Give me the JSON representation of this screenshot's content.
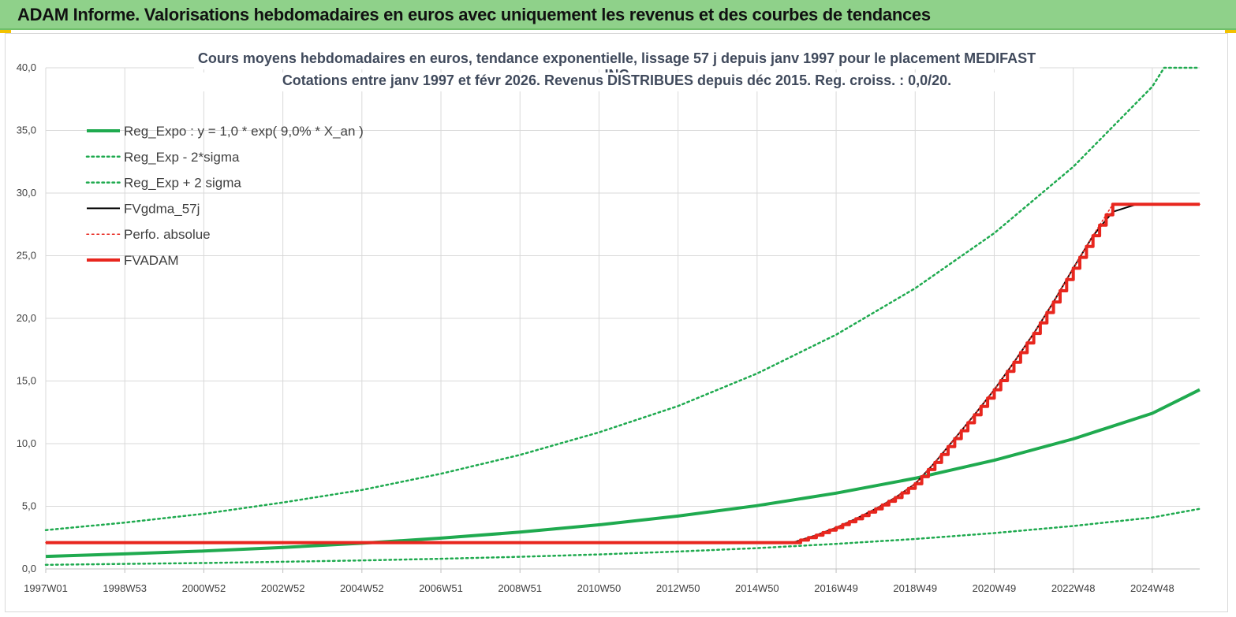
{
  "header": {
    "title": "ADAM Informe. Valorisations hebdomadaires en euros avec uniquement les revenus et des courbes de tendances"
  },
  "chart_data": {
    "type": "line",
    "title": [
      "Cours moyens hebdomadaires en euros, tendance exponentielle, lissage 57 j depuis janv 1997 pour le placement MEDIFAST INC",
      "Cotations entre janv 1997 et févr 2026. Revenus DISTRIBUES depuis déc 2015. Reg. croiss. : 0,0/20."
    ],
    "xlabel": "",
    "ylabel": "",
    "xlim": [
      1997.0,
      2026.2
    ],
    "ylim": [
      0,
      40
    ],
    "yticks": [
      "0,0",
      "5,0",
      "10,0",
      "15,0",
      "20,0",
      "25,0",
      "30,0",
      "35,0",
      "40,0"
    ],
    "xticks": [
      {
        "x": 1997.0,
        "label": "1997W01"
      },
      {
        "x": 1999.0,
        "label": "1998W53"
      },
      {
        "x": 2001.0,
        "label": "2000W52"
      },
      {
        "x": 2003.0,
        "label": "2002W52"
      },
      {
        "x": 2005.0,
        "label": "2004W52"
      },
      {
        "x": 2007.0,
        "label": "2006W51"
      },
      {
        "x": 2009.0,
        "label": "2008W51"
      },
      {
        "x": 2011.0,
        "label": "2010W50"
      },
      {
        "x": 2013.0,
        "label": "2012W50"
      },
      {
        "x": 2015.0,
        "label": "2014W50"
      },
      {
        "x": 2017.0,
        "label": "2016W49"
      },
      {
        "x": 2019.0,
        "label": "2018W49"
      },
      {
        "x": 2021.0,
        "label": "2020W49"
      },
      {
        "x": 2023.0,
        "label": "2022W48"
      },
      {
        "x": 2025.0,
        "label": "2024W48"
      }
    ],
    "grid": true,
    "legend_position": "top-left",
    "series": [
      {
        "name": "Reg_Expo : y = 1,0 * exp( 9,0% *  X_an )",
        "style": "solid",
        "color": "#1faa4f",
        "x": [
          1997,
          1999,
          2001,
          2003,
          2005,
          2007,
          2009,
          2011,
          2013,
          2015,
          2017,
          2019,
          2021,
          2023,
          2025,
          2026.2
        ],
        "y": [
          1.0,
          1.2,
          1.43,
          1.72,
          2.05,
          2.46,
          2.94,
          3.52,
          4.22,
          5.05,
          6.05,
          7.24,
          8.67,
          10.38,
          12.42,
          14.3
        ]
      },
      {
        "name": "Reg_Exp - 2*sigma",
        "style": "dotted",
        "color": "#1faa4f",
        "x": [
          1997,
          1999,
          2001,
          2003,
          2005,
          2007,
          2009,
          2011,
          2013,
          2015,
          2017,
          2019,
          2021,
          2023,
          2025,
          2026.2
        ],
        "y": [
          0.33,
          0.4,
          0.47,
          0.57,
          0.68,
          0.81,
          0.97,
          1.16,
          1.39,
          1.66,
          2.0,
          2.39,
          2.86,
          3.43,
          4.11,
          4.8
        ]
      },
      {
        "name": "Reg_Exp + 2 sigma",
        "style": "dotted",
        "color": "#1faa4f",
        "x": [
          1997,
          1999,
          2001,
          2003,
          2005,
          2007,
          2009,
          2011,
          2013,
          2015,
          2017,
          2019,
          2021,
          2023,
          2025,
          2025.3,
          2026.2
        ],
        "y": [
          3.1,
          3.7,
          4.4,
          5.3,
          6.3,
          7.6,
          9.1,
          10.9,
          13.0,
          15.6,
          18.7,
          22.4,
          26.8,
          32.1,
          38.5,
          40.0,
          40.0
        ]
      },
      {
        "name": "FVgdma_57j",
        "style": "solid",
        "color": "#000000",
        "x": [
          1997,
          2015.9,
          2016.5,
          2017.0,
          2017.5,
          2018.0,
          2018.5,
          2019.0,
          2019.5,
          2020.0,
          2020.5,
          2021.0,
          2021.5,
          2022.0,
          2022.5,
          2023.0,
          2023.5,
          2024.0,
          2024.6,
          2026.2
        ],
        "y": [
          2.1,
          2.1,
          2.7,
          3.3,
          4.0,
          4.8,
          5.7,
          6.8,
          8.5,
          10.4,
          12.3,
          14.3,
          16.5,
          18.8,
          21.3,
          24.0,
          26.6,
          28.5,
          29.1,
          29.1
        ]
      },
      {
        "name": "Perfo. absolue",
        "style": "dotted",
        "color": "#e8261e",
        "x": [
          1997,
          2015.9,
          2016.5,
          2017.0,
          2017.5,
          2018.0,
          2018.5,
          2019.0,
          2019.5,
          2020.0,
          2020.5,
          2021.0,
          2021.5,
          2022.0,
          2022.5,
          2023.0,
          2023.5,
          2024.0,
          2026.2
        ],
        "y": [
          2.1,
          2.1,
          2.7,
          3.3,
          4.0,
          4.8,
          5.7,
          6.8,
          8.5,
          10.4,
          12.3,
          14.3,
          16.5,
          18.8,
          21.3,
          24.0,
          26.6,
          29.1,
          29.1
        ]
      },
      {
        "name": "FVADAM",
        "style": "step",
        "color": "#e8261e",
        "x": [
          1997,
          2015.9,
          2016.5,
          2017.0,
          2017.5,
          2018.0,
          2018.5,
          2019.0,
          2019.5,
          2020.0,
          2020.5,
          2021.0,
          2021.5,
          2022.0,
          2022.5,
          2023.0,
          2023.5,
          2024.0,
          2026.2
        ],
        "y": [
          2.1,
          2.1,
          2.7,
          3.3,
          4.0,
          4.8,
          5.7,
          6.8,
          8.5,
          10.4,
          12.3,
          14.3,
          16.5,
          18.8,
          21.3,
          24.0,
          26.6,
          29.1,
          29.1
        ]
      }
    ]
  }
}
